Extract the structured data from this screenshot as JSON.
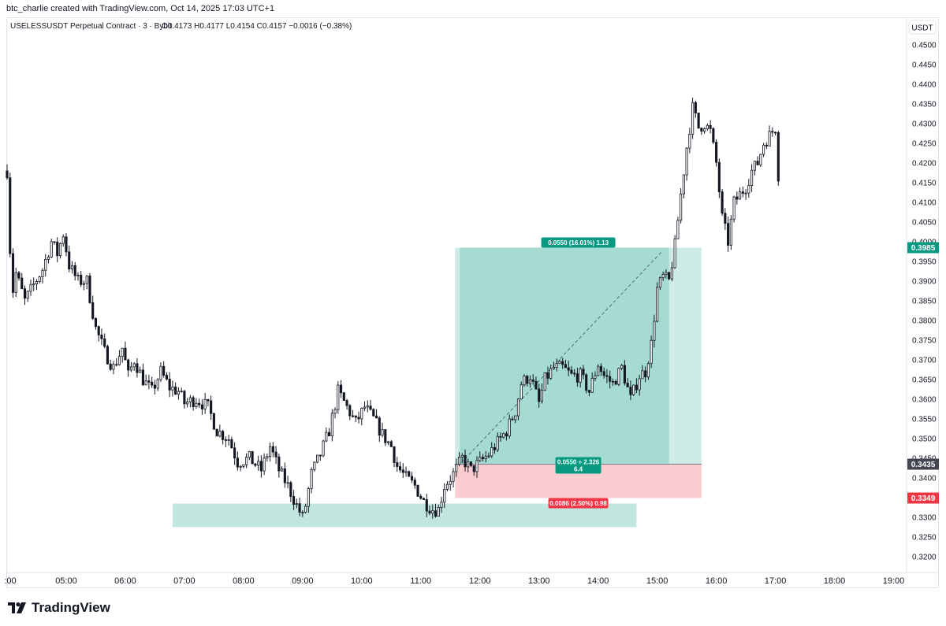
{
  "header": {
    "created_by": "btc_charlie created with TradingView.com, Oct 14, 2025 17:03 UTC+1"
  },
  "brand": {
    "name": "TradingView",
    "logo_icon": "tradingview-logo-icon"
  },
  "chart_data": {
    "type": "candlestick",
    "symbol_line": "USELESSUSDT Perpetual Contract · 3 · Bybit",
    "ohlc_line": "O0.4173  H0.4177  L0.4154  C0.4157  −0.0016 (−0.38%)",
    "currency_label": "USDT",
    "ylim": [
      0.316,
      0.457
    ],
    "y_ticks": [
      0.45,
      0.445,
      0.44,
      0.435,
      0.43,
      0.425,
      0.42,
      0.415,
      0.41,
      0.405,
      0.4,
      0.395,
      0.39,
      0.385,
      0.38,
      0.375,
      0.37,
      0.365,
      0.36,
      0.355,
      0.35,
      0.345,
      0.34,
      0.335,
      0.33,
      0.325,
      0.32
    ],
    "x_ticks": [
      ":00",
      "05:00",
      "06:00",
      "07:00",
      "08:00",
      "09:00",
      "10:00",
      "11:00",
      "12:00",
      "13:00",
      "14:00",
      "15:00",
      "16:00",
      "17:00",
      "18:00",
      "19:00"
    ],
    "x_tick_hours": [
      4,
      5,
      6,
      7,
      8,
      9,
      10,
      11,
      12,
      13,
      14,
      15,
      16,
      17,
      18,
      19
    ],
    "x_range_hours": [
      4.0,
      19.22
    ],
    "colors": {
      "up": "#ffffff",
      "down": "#131722",
      "wick": "#131722",
      "profit": "#089981",
      "loss": "#f23645",
      "last": "#434651"
    },
    "path": [
      [
        4.0,
        0.418
      ],
      [
        4.08,
        0.386
      ],
      [
        4.15,
        0.392
      ],
      [
        4.3,
        0.385
      ],
      [
        4.45,
        0.389
      ],
      [
        4.6,
        0.393
      ],
      [
        4.75,
        0.4
      ],
      [
        4.85,
        0.397
      ],
      [
        4.95,
        0.402
      ],
      [
        5.05,
        0.394
      ],
      [
        5.2,
        0.39
      ],
      [
        5.35,
        0.39
      ],
      [
        5.5,
        0.378
      ],
      [
        5.65,
        0.372
      ],
      [
        5.8,
        0.368
      ],
      [
        5.95,
        0.373
      ],
      [
        6.05,
        0.366
      ],
      [
        6.15,
        0.37
      ],
      [
        6.3,
        0.365
      ],
      [
        6.45,
        0.362
      ],
      [
        6.6,
        0.367
      ],
      [
        6.75,
        0.363
      ],
      [
        6.9,
        0.362
      ],
      [
        7.0,
        0.359
      ],
      [
        7.2,
        0.36
      ],
      [
        7.4,
        0.358
      ],
      [
        7.55,
        0.352
      ],
      [
        7.75,
        0.35
      ],
      [
        7.9,
        0.344
      ],
      [
        8.1,
        0.345
      ],
      [
        8.3,
        0.342
      ],
      [
        8.45,
        0.348
      ],
      [
        8.6,
        0.342
      ],
      [
        8.75,
        0.338
      ],
      [
        8.9,
        0.333
      ],
      [
        9.0,
        0.33
      ],
      [
        9.05,
        0.333
      ],
      [
        9.15,
        0.341
      ],
      [
        9.3,
        0.346
      ],
      [
        9.45,
        0.352
      ],
      [
        9.6,
        0.362
      ],
      [
        9.75,
        0.358
      ],
      [
        9.9,
        0.354
      ],
      [
        10.05,
        0.358
      ],
      [
        10.2,
        0.355
      ],
      [
        10.35,
        0.351
      ],
      [
        10.5,
        0.348
      ],
      [
        10.6,
        0.343
      ],
      [
        10.75,
        0.34
      ],
      [
        10.9,
        0.338
      ],
      [
        11.05,
        0.334
      ],
      [
        11.2,
        0.332
      ],
      [
        11.3,
        0.332
      ],
      [
        11.4,
        0.338
      ],
      [
        11.55,
        0.341
      ],
      [
        11.7,
        0.345
      ],
      [
        11.85,
        0.342
      ],
      [
        12.0,
        0.344
      ],
      [
        12.15,
        0.346
      ],
      [
        12.3,
        0.349
      ],
      [
        12.45,
        0.352
      ],
      [
        12.6,
        0.357
      ],
      [
        12.7,
        0.364
      ],
      [
        12.85,
        0.366
      ],
      [
        13.0,
        0.359
      ],
      [
        13.1,
        0.365
      ],
      [
        13.25,
        0.368
      ],
      [
        13.4,
        0.368
      ],
      [
        13.55,
        0.366
      ],
      [
        13.7,
        0.366
      ],
      [
        13.85,
        0.362
      ],
      [
        14.0,
        0.369
      ],
      [
        14.1,
        0.366
      ],
      [
        14.25,
        0.364
      ],
      [
        14.4,
        0.368
      ],
      [
        14.55,
        0.36
      ],
      [
        14.7,
        0.366
      ],
      [
        14.8,
        0.367
      ],
      [
        14.9,
        0.374
      ],
      [
        15.0,
        0.388
      ],
      [
        15.1,
        0.391
      ],
      [
        15.2,
        0.39
      ],
      [
        15.3,
        0.399
      ],
      [
        15.4,
        0.412
      ],
      [
        15.5,
        0.424
      ],
      [
        15.6,
        0.434
      ],
      [
        15.7,
        0.429
      ],
      [
        15.8,
        0.43
      ],
      [
        15.9,
        0.428
      ],
      [
        16.0,
        0.42
      ],
      [
        16.1,
        0.406
      ],
      [
        16.2,
        0.4
      ],
      [
        16.3,
        0.41
      ],
      [
        16.4,
        0.412
      ],
      [
        16.5,
        0.414
      ],
      [
        16.6,
        0.418
      ],
      [
        16.7,
        0.42
      ],
      [
        16.8,
        0.425
      ],
      [
        16.9,
        0.427
      ],
      [
        17.0,
        0.429
      ],
      [
        17.05,
        0.417
      ]
    ],
    "last_price": 0.4157,
    "price_labels": [
      {
        "value": 0.3985,
        "text": "0.3985",
        "color": "#089981"
      },
      {
        "value": 0.3435,
        "text": "0.3435",
        "color": "#434651"
      },
      {
        "value": 0.3349,
        "text": "0.3349",
        "color": "#f23645"
      }
    ],
    "long_position": {
      "t_start": 11.58,
      "t_end": 15.75,
      "t_fade": 15.2,
      "entry": 0.3435,
      "target": 0.3985,
      "stop": 0.3349,
      "target_label": "0.0550 (16.01%) 1.13",
      "entry_label": [
        "0.0550 ÷ 2.326",
        "6.4"
      ],
      "stop_label": "0.0086 (2.50%) 0.98"
    },
    "demand_zone": {
      "t_start": 6.8,
      "t_end": 14.65,
      "top": 0.3335,
      "bottom": 0.3275
    }
  }
}
